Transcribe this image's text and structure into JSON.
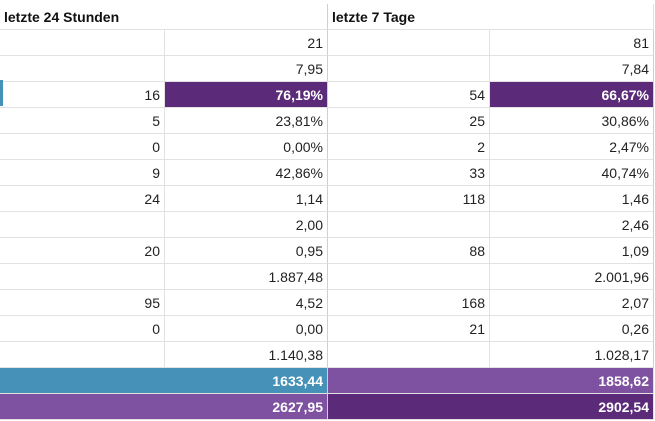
{
  "colors": {
    "purple_dark": "#5b2b7a",
    "purple_mid": "#7e52a0",
    "blue": "#4591b8"
  },
  "header": {
    "col_24h": "letzte 24 Stunden",
    "col_7d": "letzte 7 Tage"
  },
  "rows": [
    {
      "a": "",
      "b": "21",
      "c": "",
      "d": "81"
    },
    {
      "a": "",
      "b": "7,95",
      "c": "",
      "d": "7,84"
    },
    {
      "a": "16",
      "b": "76,19%",
      "c": "54",
      "d": "66,67%"
    },
    {
      "a": "5",
      "b": "23,81%",
      "c": "25",
      "d": "30,86%"
    },
    {
      "a": "0",
      "b": "0,00%",
      "c": "2",
      "d": "2,47%"
    },
    {
      "a": "9",
      "b": "42,86%",
      "c": "33",
      "d": "40,74%"
    },
    {
      "a": "24",
      "b": "1,14",
      "c": "118",
      "d": "1,46"
    },
    {
      "a": "",
      "b": "2,00",
      "c": "",
      "d": "2,46"
    },
    {
      "a": "20",
      "b": "0,95",
      "c": "88",
      "d": "1,09"
    },
    {
      "a": "",
      "b": "1.887,48",
      "c": "",
      "d": "2.001,96"
    },
    {
      "a": "95",
      "b": "4,52",
      "c": "168",
      "d": "2,07"
    },
    {
      "a": "0",
      "b": "0,00",
      "c": "21",
      "d": "0,26"
    },
    {
      "a": "",
      "b": "1.140,38",
      "c": "",
      "d": "1.028,17"
    }
  ],
  "totals": [
    {
      "left": "1633,44",
      "right": "1858,62"
    },
    {
      "left": "2627,95",
      "right": "2902,54"
    }
  ]
}
